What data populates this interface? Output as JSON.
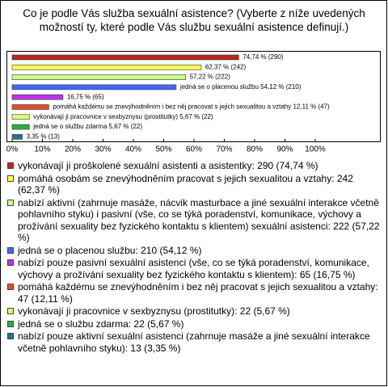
{
  "chart_data": {
    "type": "bar",
    "orientation": "horizontal",
    "title": "Co je podle Vás služba sexuální asistence? (Vyberte z níže uvedených možností ty, které podle Vás službu sexuální asistence definují.)",
    "categories": [
      "vykonávají ji proškolené sexuální asistenti a asistentky: 290 (74,74 %)",
      "pomáhá osobám se znevýhodněním pracovat s jejich sexualitou a vztahy: 242 (62,37 %)",
      "nabízí aktivní (zahrnuje masáže, nácvik masturbace a jiné sexuální interakce včetně pohlavního styku) i pasivní (vše, co se týká poradenství, komunikace, výchovy a prožívání sexuality bez fyzického kontaktu s klientem) sexuální asistenci: 222 (57,22 %)",
      "jedná se o placenou službu: 210 (54,12 %)",
      "nabízí pouze pasivní sexuální asistenci (vše, co se týká poradenství, komunikace, výchovy a prožívání sexuality bez fyzického kontaktu s klientem): 65 (16,75 %)",
      "pomáhá každému se znevýhodněním i bez něj pracovat s jejich sexualitou a vztahy: 47 (12,11 %)",
      "vykonávají ji pracovnice v sexbyznysu (prostitutky): 22 (5,67 %)",
      "jedná se o službu zdarma: 22 (5,67 %)",
      "nabízí pouze aktivní sexuální asistenci (zahrnuje masáže a jiné sexuální interakce včetně pohlavního styku): 13 (3,35 %)"
    ],
    "values": [
      74.74,
      62.37,
      57.22,
      54.12,
      16.75,
      12.11,
      5.67,
      5.67,
      3.35
    ],
    "value_labels": [
      "74,74 % (290)",
      "62,37 % (242)",
      "57,22 % (222)",
      "jedná se o placenou službu 54,12 % (210)",
      "16,75 % (65)",
      "pomáhá každému se znevýhodněním i bez něj pracovat s jejich sexualitou a vztahy 12,11 % (47)",
      "vykonávají ji pracovnice v sexbyznysu (prostitutky) 5,67 % (22)",
      "jedná se o službu zdarma 5,67 % (22)",
      "3,35 % (13)"
    ],
    "colors": [
      "#b8281c",
      "#ffff55",
      "#ccff88",
      "#4466ff",
      "#bb33ee",
      "#e0502a",
      "#ddff77",
      "#33aa44",
      "#2d7090"
    ],
    "xlim": [
      0,
      100
    ],
    "xticks": [
      {
        "value": 0,
        "label": "0%"
      },
      {
        "value": 10,
        "label": "10%"
      },
      {
        "value": 20,
        "label": "20%"
      },
      {
        "value": 30,
        "label": "30%"
      },
      {
        "value": 40,
        "label": "40%"
      },
      {
        "value": 50,
        "label": "50%"
      },
      {
        "value": 60,
        "label": "60%"
      },
      {
        "value": 70,
        "label": "70%"
      },
      {
        "value": 80,
        "label": "80%"
      },
      {
        "value": 90,
        "label": "90%"
      },
      {
        "value": 100,
        "label": "100%"
      }
    ]
  }
}
